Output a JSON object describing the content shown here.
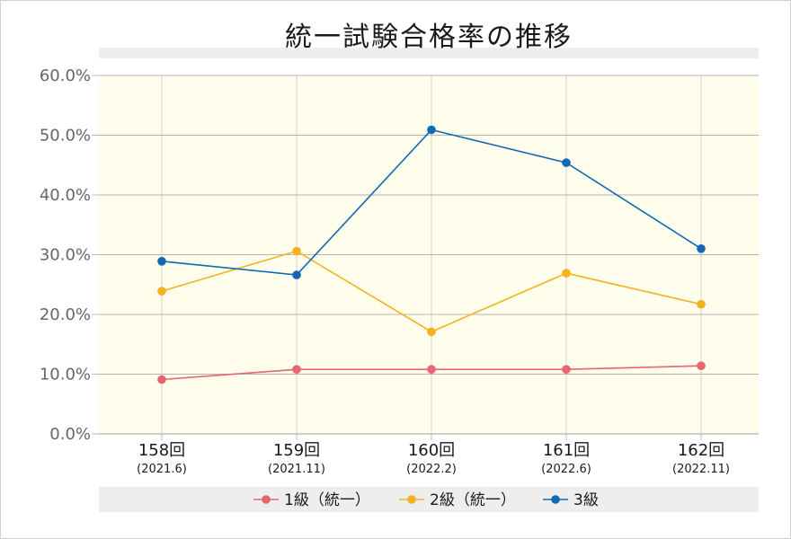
{
  "colors": {
    "plot_bg": "#fffdeb",
    "band_bg": "#eeeeee",
    "grid_h": "#b4b4b4",
    "grid_v": "#d2d2d2",
    "axis": "#bdbdbd"
  },
  "chart_data": {
    "type": "line",
    "title": "統一試験合格率の推移",
    "categories": [
      "158回",
      "159回",
      "160回",
      "161回",
      "162回"
    ],
    "category_sublabels": [
      "(2021.6)",
      "(2021.11)",
      "(2022.2)",
      "(2022.6)",
      "(2022.11)"
    ],
    "ylim": [
      0,
      60
    ],
    "yticks": [
      0,
      10,
      20,
      30,
      40,
      50,
      60
    ],
    "ytick_labels": [
      "0.0%",
      "10.0%",
      "20.0%",
      "30.0%",
      "40.0%",
      "50.0%",
      "60.0%"
    ],
    "grid": true,
    "legend_position": "bottom",
    "series": [
      {
        "name": "1級（統一）",
        "color": "#e8646e",
        "values": [
          9.1,
          10.8,
          10.8,
          10.8,
          11.4
        ]
      },
      {
        "name": "2級（統一）",
        "color": "#f5b21e",
        "values": [
          23.9,
          30.6,
          17.1,
          26.9,
          21.7
        ]
      },
      {
        "name": "3級",
        "color": "#1069b4",
        "values": [
          28.9,
          26.6,
          50.9,
          45.4,
          31.0
        ]
      }
    ]
  }
}
